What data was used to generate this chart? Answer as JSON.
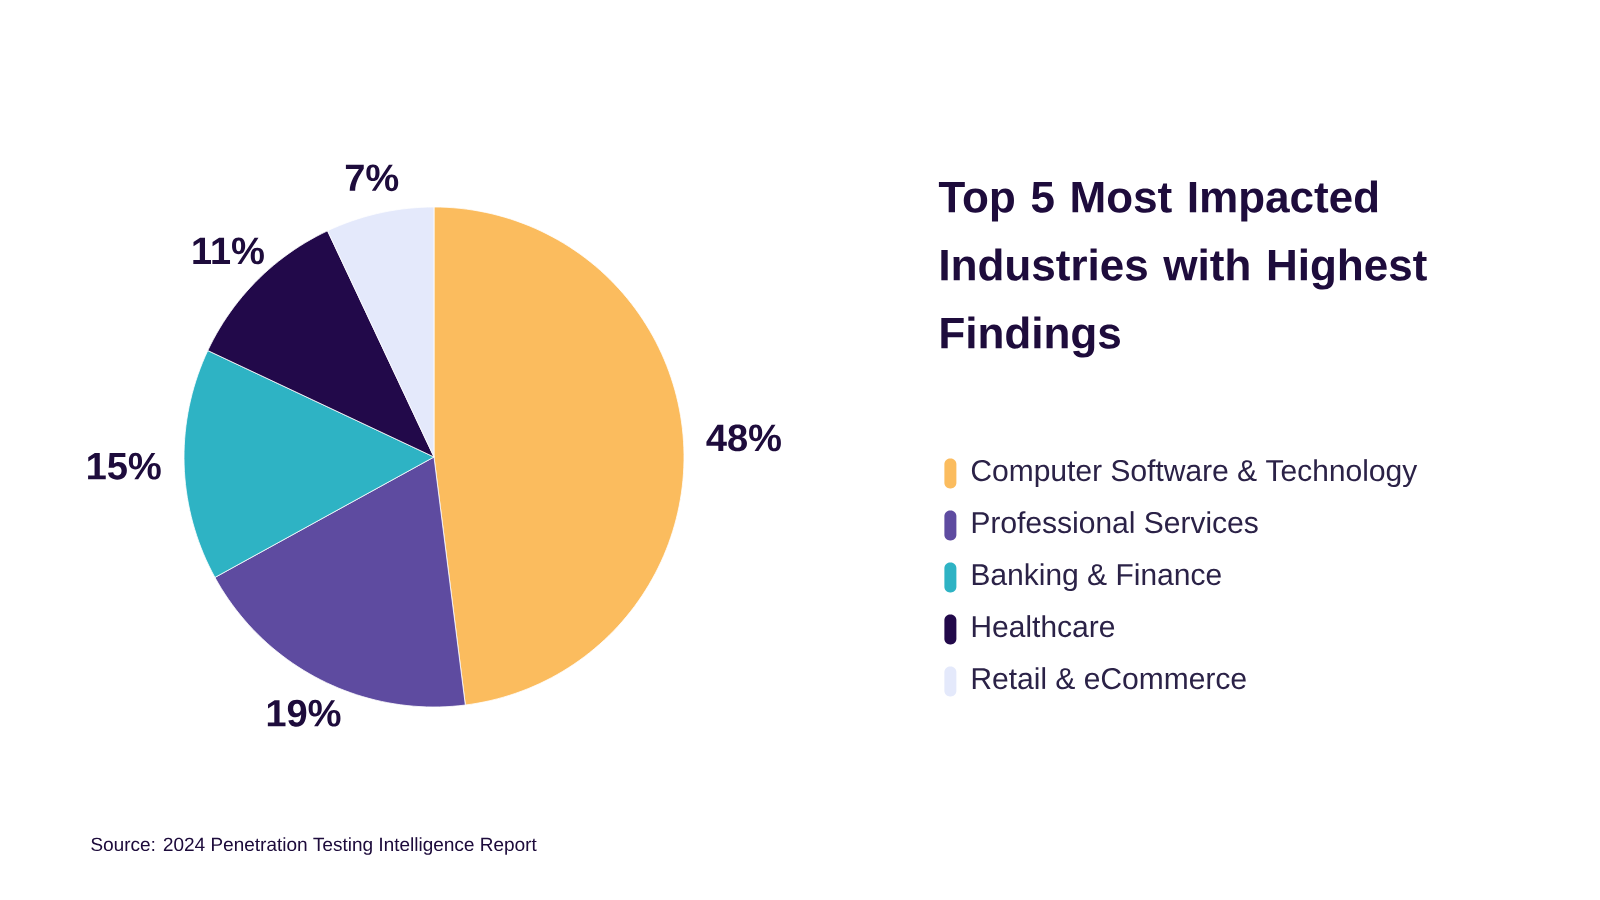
{
  "chart_data": {
    "type": "pie",
    "title": "Top 5 Most Impacted Industries with Highest Findings",
    "categories": [
      "Computer Software & Technology",
      "Professional Services",
      "Banking & Finance",
      "Healthcare",
      "Retail & eCommerce"
    ],
    "values": [
      48,
      19,
      15,
      11,
      7
    ],
    "value_labels": [
      "48%",
      "19%",
      "15%",
      "11%",
      "7%"
    ],
    "colors": [
      "#fbbc5e",
      "#5e4ba0",
      "#2eb3c4",
      "#22094a",
      "#e4e9fb"
    ],
    "legend": "right",
    "annotations": [
      "Source: 2024 Penetration Testing Intelligence Report"
    ]
  }
}
